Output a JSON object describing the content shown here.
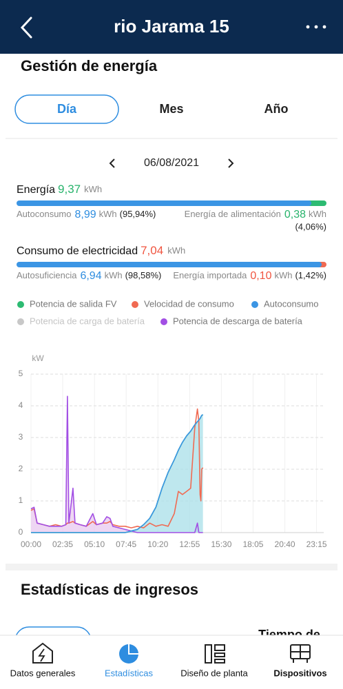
{
  "header": {
    "title": "rio Jarama 15"
  },
  "section_title": "Gestión de energía",
  "tabs": [
    "Día",
    "Mes",
    "Año"
  ],
  "active_tab": 0,
  "date": "06/08/2021",
  "energy": {
    "label": "Energía",
    "value": "9,37",
    "unit": "kWh",
    "left": {
      "label": "Autoconsumo",
      "value": "8,99",
      "unit": "kWh",
      "share": "(95,94%)"
    },
    "right": {
      "label": "Energía de alimentación",
      "value": "0,38",
      "unit": "kWh",
      "share": "(4,06%)"
    }
  },
  "consumption": {
    "label": "Consumo de electricidad",
    "value": "7,04",
    "unit": "kWh",
    "left": {
      "label": "Autosuficiencia",
      "value": "6,94",
      "unit": "kWh",
      "share": "(98,58%)"
    },
    "right": {
      "label": "Energía importada",
      "value": "0,10",
      "unit": "kWh",
      "share": "(1,42%)"
    }
  },
  "chart_data": {
    "type": "line",
    "ylabel": "kW",
    "x": [
      0,
      15,
      30,
      60,
      90,
      120,
      150,
      170,
      178,
      185,
      205,
      215,
      240,
      270,
      302,
      320,
      350,
      370,
      386,
      400,
      430,
      460,
      490,
      520,
      550,
      580,
      610,
      640,
      670,
      700,
      720,
      740,
      760,
      780,
      800,
      813,
      820,
      826,
      830,
      834,
      840
    ],
    "xlim": [
      0,
      1430
    ],
    "xticks": [
      {
        "value": 0,
        "label": "00:00"
      },
      {
        "value": 155,
        "label": "02:35"
      },
      {
        "value": 310,
        "label": "05:10"
      },
      {
        "value": 465,
        "label": "07:45"
      },
      {
        "value": 620,
        "label": "10:20"
      },
      {
        "value": 775,
        "label": "12:55"
      },
      {
        "value": 930,
        "label": "15:30"
      },
      {
        "value": 1085,
        "label": "18:05"
      },
      {
        "value": 1240,
        "label": "20:40"
      },
      {
        "value": 1395,
        "label": "23:15"
      }
    ],
    "ylim": [
      0,
      5
    ],
    "yticks": [
      0,
      1,
      2,
      3,
      4,
      5
    ],
    "grid": true,
    "series": [
      {
        "name": "Potencia de salida FV",
        "color": "#2dbb72",
        "values": [
          0,
          0,
          0,
          0,
          0,
          0,
          0,
          0,
          0,
          0,
          0,
          0,
          0,
          0,
          0,
          0,
          0,
          0,
          0,
          0,
          0,
          0,
          0.05,
          0.1,
          0.25,
          0.45,
          0.8,
          1.4,
          1.9,
          2.3,
          2.6,
          2.85,
          3.05,
          3.2,
          3.4,
          3.5,
          3.55,
          3.6,
          3.65,
          3.7,
          3.72
        ]
      },
      {
        "name": "Velocidad de consumo",
        "color": "#f06a52",
        "values": [
          0.7,
          0.75,
          0.3,
          0.25,
          0.2,
          0.25,
          0.2,
          0.25,
          0.3,
          0.3,
          0.35,
          0.3,
          0.25,
          0.2,
          0.35,
          0.25,
          0.3,
          0.3,
          0.35,
          0.25,
          0.2,
          0.2,
          0.15,
          0.2,
          0.15,
          0.3,
          0.2,
          0.25,
          0.2,
          0.6,
          1.3,
          1.2,
          1.3,
          1.4,
          3.3,
          3.9,
          3.5,
          1.2,
          1.0,
          2.0,
          2.05
        ]
      },
      {
        "name": "Autoconsumo",
        "color": "#3b95e4",
        "fill": "#a8dfe8",
        "values": [
          0,
          0,
          0,
          0,
          0,
          0,
          0,
          0,
          0,
          0,
          0,
          0,
          0,
          0,
          0,
          0,
          0,
          0,
          0,
          0,
          0,
          0,
          0.05,
          0.1,
          0.25,
          0.45,
          0.8,
          1.4,
          1.9,
          2.3,
          2.6,
          2.85,
          3.05,
          3.2,
          3.4,
          3.5,
          3.55,
          3.6,
          3.65,
          3.7,
          3.72
        ]
      },
      {
        "name": "Potencia de carga de batería",
        "color": "#c8c8c8",
        "visible": false
      },
      {
        "name": "Potencia de descarga de batería",
        "color": "#a24fe4",
        "fill": "#e8c8ef",
        "values": [
          0.75,
          0.8,
          0.3,
          0.25,
          0.2,
          0.2,
          0.2,
          0.25,
          4.3,
          0.3,
          1.4,
          0.3,
          0.25,
          0.2,
          0.6,
          0.25,
          0.3,
          0.5,
          0.45,
          0.2,
          0.15,
          0.1,
          0.05,
          0,
          0,
          0,
          0,
          0,
          0,
          0,
          0,
          0,
          0,
          0,
          0,
          0.3,
          0,
          0,
          0,
          0,
          0
        ]
      }
    ]
  },
  "income_title": "Estadísticas de ingresos",
  "partial_text": "Tiempo de",
  "nav": [
    "Datos generales",
    "Estadísticas",
    "Diseño de planta",
    "Dispositivos"
  ],
  "active_nav": 1
}
